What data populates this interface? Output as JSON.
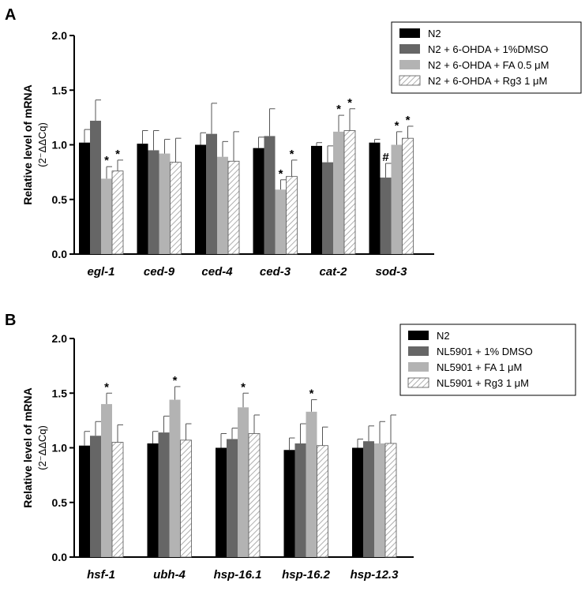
{
  "chart_data": [
    {
      "panel": "A",
      "type": "bar",
      "ylabel": "Relative level of mRNA",
      "ylabel_sub": "(2⁻ΔΔCq)",
      "ylim": [
        0,
        2.0
      ],
      "yticks": [
        "0.0",
        "0.5",
        "1.0",
        "1.5",
        "2.0"
      ],
      "legend_position": "top-right",
      "categories": [
        "egl-1",
        "ced-9",
        "ced-4",
        "ced-3",
        "cat-2",
        "sod-3"
      ],
      "series": [
        {
          "name": "N2",
          "style": "black",
          "values": [
            1.02,
            1.01,
            1.0,
            0.97,
            0.99,
            1.02
          ],
          "err": [
            0.12,
            0.12,
            0.11,
            0.1,
            0.03,
            0.03
          ],
          "marks": [
            "",
            "",
            "",
            "",
            "",
            ""
          ]
        },
        {
          "name": "N2 + 6-OHDA + 1%DMSO",
          "style": "darkgray",
          "values": [
            1.22,
            0.95,
            1.1,
            1.08,
            0.84,
            0.7
          ],
          "err": [
            0.19,
            0.18,
            0.28,
            0.25,
            0.15,
            0.13
          ],
          "marks": [
            "",
            "",
            "",
            "",
            "",
            "#"
          ]
        },
        {
          "name": "N2 + 6-OHDA + FA 0.5 μM",
          "style": "lightgray",
          "values": [
            0.69,
            0.92,
            0.89,
            0.59,
            1.12,
            1.0
          ],
          "err": [
            0.11,
            0.13,
            0.14,
            0.09,
            0.15,
            0.12
          ],
          "marks": [
            "*",
            "",
            "",
            "*",
            "*",
            "*"
          ]
        },
        {
          "name": "N2 + 6-OHDA + Rg3 1 μM",
          "style": "hatched",
          "values": [
            0.76,
            0.84,
            0.85,
            0.71,
            1.13,
            1.06
          ],
          "err": [
            0.1,
            0.22,
            0.27,
            0.15,
            0.2,
            0.11
          ],
          "marks": [
            "*",
            "",
            "",
            "*",
            "*",
            "*"
          ]
        }
      ]
    },
    {
      "panel": "B",
      "type": "bar",
      "ylabel": "Relative level of mRNA",
      "ylabel_sub": "(2⁻ΔΔCq)",
      "ylim": [
        0,
        2.0
      ],
      "yticks": [
        "0.0",
        "0.5",
        "1.0",
        "1.5",
        "2.0"
      ],
      "legend_position": "top-right",
      "categories": [
        "hsf-1",
        "ubh-4",
        "hsp-16.1",
        "hsp-16.2",
        "hsp-12.3"
      ],
      "series": [
        {
          "name": "N2",
          "style": "black",
          "values": [
            1.02,
            1.04,
            1.0,
            0.98,
            1.0
          ],
          "err": [
            0.13,
            0.11,
            0.13,
            0.11,
            0.08
          ],
          "marks": [
            "",
            "",
            "",
            "",
            ""
          ]
        },
        {
          "name": "NL5901 + 1% DMSO",
          "style": "darkgray",
          "values": [
            1.11,
            1.14,
            1.08,
            1.04,
            1.06
          ],
          "err": [
            0.13,
            0.15,
            0.1,
            0.18,
            0.14
          ],
          "marks": [
            "",
            "",
            "",
            "",
            ""
          ]
        },
        {
          "name": "NL5901 + FA 1 μM",
          "style": "lightgray",
          "values": [
            1.4,
            1.44,
            1.37,
            1.33,
            1.04
          ],
          "err": [
            0.1,
            0.12,
            0.13,
            0.11,
            0.2
          ],
          "marks": [
            "*",
            "*",
            "*",
            "*",
            ""
          ]
        },
        {
          "name": "NL5901 + Rg3 1 μM",
          "style": "hatched",
          "values": [
            1.05,
            1.07,
            1.13,
            1.02,
            1.04
          ],
          "err": [
            0.16,
            0.15,
            0.17,
            0.17,
            0.26
          ],
          "marks": [
            "",
            "",
            "",
            "",
            ""
          ]
        }
      ]
    }
  ],
  "colors": {
    "black": "#000000",
    "darkgray": "#666666",
    "lightgray": "#b3b3b3",
    "hatch": "#9a9a9a"
  }
}
